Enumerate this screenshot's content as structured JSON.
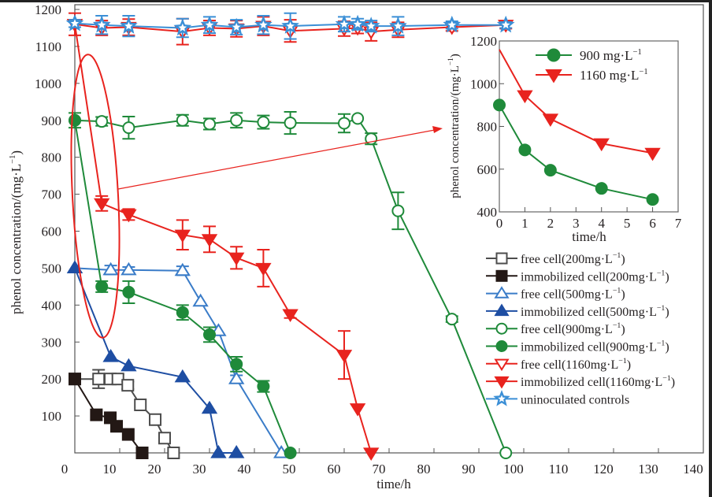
{
  "chart_data": [
    {
      "type": "line",
      "title": "",
      "xlabel": "time/h",
      "ylabel": "phenol concentration/(mg·L⁻¹)",
      "xlim": [
        0,
        140
      ],
      "ylim": [
        0,
        1200
      ],
      "x_ticks": [
        0,
        10,
        20,
        30,
        40,
        50,
        60,
        70,
        80,
        90,
        100,
        110,
        120,
        130,
        140
      ],
      "y_ticks": [
        100,
        200,
        300,
        400,
        500,
        600,
        700,
        800,
        900,
        1000,
        1100,
        1200
      ],
      "grid": false,
      "legend_position": "bottom-right",
      "series": [
        {
          "name": "free cell(200mg·L⁻¹)",
          "marker": "square-open",
          "color": "#4d4d4d",
          "x": [
            0,
            5.3,
            7.9,
            9.6,
            11.8,
            14.6,
            17.9,
            20,
            22
          ],
          "y": [
            200,
            200,
            200,
            200,
            183,
            130,
            90,
            40,
            0
          ],
          "err": [
            0,
            25,
            0,
            12,
            10,
            0,
            0,
            0,
            0
          ]
        },
        {
          "name": "immobilized cell(200mg·L⁻¹)",
          "marker": "square-filled",
          "color": "#231815",
          "x": [
            0,
            4.8,
            7.9,
            9.3,
            11.9,
            15
          ],
          "y": [
            200,
            103,
            95,
            72,
            50,
            0
          ],
          "err": [
            0,
            0,
            12,
            12,
            0,
            0
          ]
        },
        {
          "name": "free cell(500mg·L⁻¹)",
          "marker": "triangle-up-open",
          "color": "#3a7cc8",
          "x": [
            0,
            8,
            12,
            24,
            28,
            32,
            36,
            46
          ],
          "y": [
            500,
            495,
            495,
            493,
            410,
            330,
            200,
            0
          ],
          "err": [
            0,
            12,
            8,
            12,
            0,
            0,
            10,
            0
          ]
        },
        {
          "name": "immobilized cell(500mg·L⁻¹)",
          "marker": "triangle-up-filled",
          "color": "#1e4ea3",
          "x": [
            0,
            8,
            12,
            24,
            30,
            32,
            36
          ],
          "y": [
            500,
            260,
            235,
            205,
            120,
            0,
            0
          ],
          "err": [
            0,
            0,
            0,
            0,
            0,
            0,
            0
          ]
        },
        {
          "name": "free cell(900mg·L⁻¹)",
          "marker": "circle-open",
          "color": "#1f8a3a",
          "x": [
            0,
            6,
            12,
            24,
            30,
            36,
            42,
            48,
            60,
            63,
            66,
            72,
            84,
            96
          ],
          "y": [
            900,
            897,
            880,
            900,
            890,
            900,
            895,
            893,
            892,
            905,
            850,
            655,
            362,
            0
          ],
          "err": [
            0,
            12,
            30,
            15,
            15,
            20,
            18,
            30,
            25,
            0,
            15,
            50,
            8,
            0
          ]
        },
        {
          "name": "immobilized cell(900mg·L⁻¹)",
          "marker": "circle-filled",
          "color": "#1f8a3a",
          "x": [
            0,
            6,
            12,
            24,
            30,
            36,
            42,
            48
          ],
          "y": [
            900,
            450,
            435,
            380,
            320,
            240,
            180,
            0
          ],
          "err": [
            20,
            15,
            30,
            20,
            20,
            20,
            15,
            0
          ]
        },
        {
          "name": "free cell(1160mg·L⁻¹)",
          "marker": "triangle-down-open",
          "color": "#e8231e",
          "x": [
            0,
            6,
            12,
            24,
            30,
            36,
            42,
            48,
            60,
            63,
            66,
            72,
            84,
            96
          ],
          "y": [
            1160,
            1150,
            1152,
            1140,
            1150,
            1148,
            1155,
            1142,
            1148,
            1150,
            1140,
            1145,
            1152,
            1158
          ],
          "err": [
            30,
            20,
            22,
            35,
            20,
            22,
            25,
            30,
            20,
            15,
            25,
            20,
            10,
            10
          ]
        },
        {
          "name": "immobilized cell(1160mg·L⁻¹)",
          "marker": "triangle-down-filled",
          "color": "#e8231e",
          "x": [
            0,
            6,
            12,
            24,
            30,
            36,
            42,
            48,
            60,
            63,
            66
          ],
          "y": [
            1160,
            675,
            645,
            590,
            578,
            528,
            500,
            375,
            265,
            120,
            0
          ],
          "err": [
            0,
            20,
            15,
            40,
            35,
            30,
            50,
            10,
            65,
            0,
            0
          ]
        },
        {
          "name": "uninoculated controls",
          "marker": "star-open",
          "color": "#3b8fd6",
          "x": [
            0,
            6,
            12,
            24,
            30,
            36,
            42,
            48,
            60,
            63,
            66,
            72,
            84,
            96
          ],
          "y": [
            1162,
            1158,
            1155,
            1150,
            1158,
            1152,
            1158,
            1155,
            1160,
            1160,
            1155,
            1155,
            1158,
            1158
          ],
          "err": [
            10,
            25,
            28,
            25,
            22,
            20,
            25,
            35,
            20,
            15,
            15,
            25,
            10,
            8
          ]
        }
      ],
      "annotations": [
        {
          "type": "ellipse",
          "description": "highlights 0-6 h region of 900 and 1160 mg·L⁻¹ immobilized cells",
          "color": "#e8231e"
        },
        {
          "type": "arrow",
          "description": "points from ellipse to inset chart",
          "color": "#e8231e"
        }
      ]
    },
    {
      "type": "line",
      "title": "inset",
      "xlabel": "time/h",
      "ylabel": "phenol concentration/(mg·L⁻¹)",
      "xlim": [
        0,
        7
      ],
      "ylim": [
        400,
        1200
      ],
      "x_ticks": [
        0,
        1,
        2,
        3,
        4,
        5,
        6,
        7
      ],
      "y_ticks": [
        400,
        600,
        800,
        1000,
        1200
      ],
      "grid": false,
      "legend_position": "top-right",
      "series": [
        {
          "name": "900 mg·L⁻¹",
          "marker": "circle-filled",
          "color": "#1f8a3a",
          "x": [
            0,
            1,
            2,
            4,
            6
          ],
          "y": [
            900,
            690,
            595,
            510,
            458
          ]
        },
        {
          "name": "1160 mg·L⁻¹",
          "marker": "triangle-down-filled",
          "color": "#e8231e",
          "x": [
            0,
            1,
            2,
            4,
            6
          ],
          "y": [
            1160,
            945,
            835,
            720,
            675
          ],
          "first_marker_hidden": true
        }
      ]
    }
  ]
}
